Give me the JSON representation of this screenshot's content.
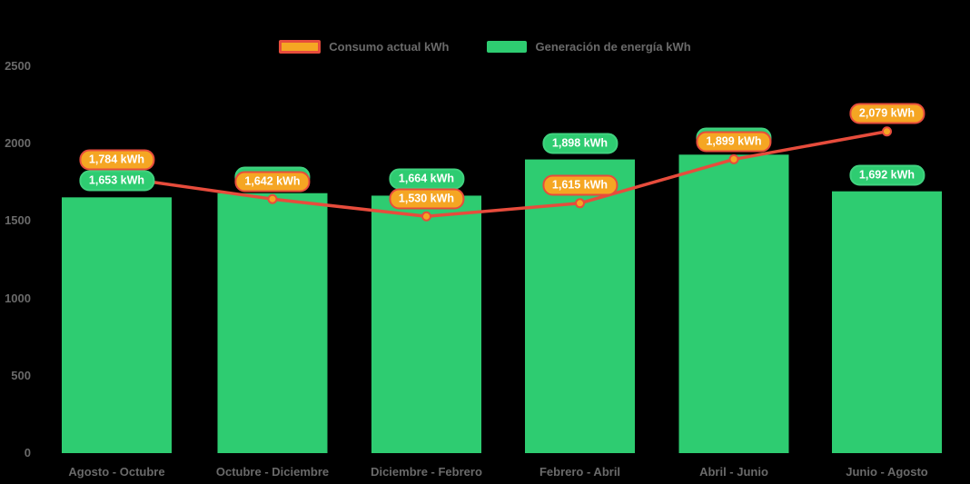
{
  "chart_data": {
    "type": "bar+line",
    "title": "",
    "categories": [
      "Agosto - Octubre",
      "Octubre - Diciembre",
      "Diciembre - Febrero",
      "Febrero - Abril",
      "Abril - Junio",
      "Junio - Agosto"
    ],
    "series": [
      {
        "name": "Consumo actual kWh",
        "type": "line",
        "line_color": "#E74C3C",
        "point_color": "#F5A623",
        "values": [
          1784,
          1642,
          1530,
          1615,
          1899,
          2079
        ],
        "labels": [
          "1,784 kWh",
          "1,642 kWh",
          "1,530 kWh",
          "1,615 kWh",
          "1,899 kWh",
          "2,079 kWh"
        ]
      },
      {
        "name": "Generación de energía kWh",
        "type": "bar",
        "color": "#2ECC71",
        "values": [
          1653,
          1680,
          1664,
          1898,
          1929,
          1692
        ],
        "labels": [
          "1,653 kWh",
          "1,680 kWh",
          "1,664 kWh",
          "1,898 kWh",
          "1,929 kWh",
          "1,692 kWh"
        ]
      }
    ],
    "ylim": [
      0,
      2500
    ],
    "yticks": [
      0,
      500,
      1000,
      1500,
      2000,
      2500
    ],
    "grid": false,
    "legend_position": "top",
    "background_color": "#000000",
    "axis_text_color": "#6a6a6a",
    "label_unit": "kWh"
  }
}
